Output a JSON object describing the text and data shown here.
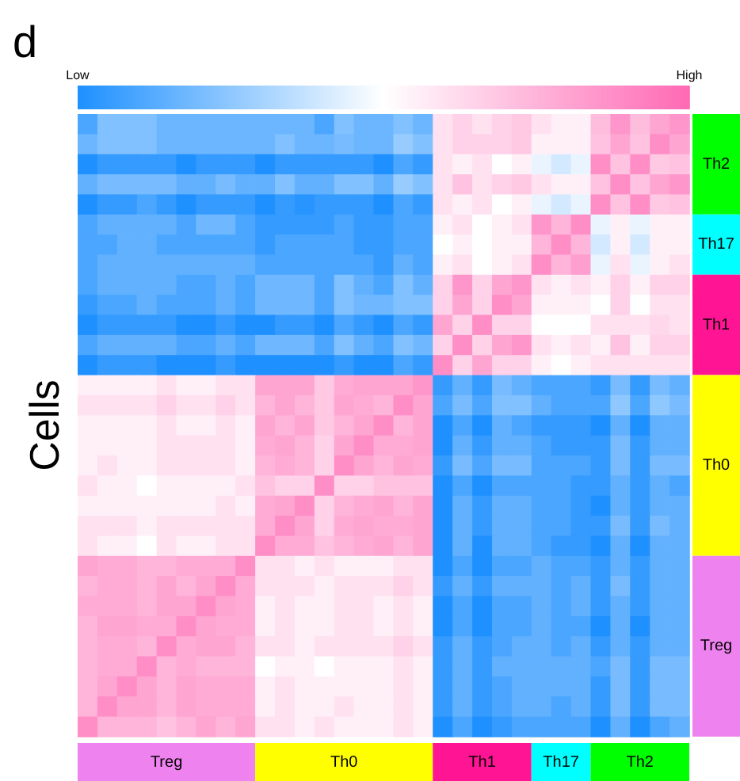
{
  "chart_data": {
    "type": "heatmap",
    "title": "d",
    "ylabel": "Cells",
    "categories": [
      null,
      null,
      null,
      null,
      "Treg",
      null,
      null,
      null,
      null,
      null,
      null,
      null,
      null,
      "Th0",
      null,
      null,
      null,
      null,
      null,
      null,
      "Th1",
      null,
      null,
      null,
      "Th17",
      null,
      null,
      null,
      "Th2",
      null,
      null
    ],
    "colors": [
      "#ee82ee",
      "#ee82ee",
      "#ee82ee",
      "#ee82ee",
      "#ee82ee",
      "#ee82ee",
      "#ee82ee",
      "#ee82ee",
      "#ee82ee",
      "#ffff00",
      "#ffff00",
      "#ffff00",
      "#ffff00",
      "#ffff00",
      "#ffff00",
      "#ffff00",
      "#ffff00",
      "#ffff00",
      "#ff1493",
      "#ff1493",
      "#ff1493",
      "#ff1493",
      "#ff1493",
      "#00ffff",
      "#00ffff",
      "#00ffff",
      "#00ff00",
      "#00ff00",
      "#00ff00",
      "#00ff00",
      "#00ff00"
    ],
    "y_categories": [
      null,
      null,
      null,
      null,
      null,
      null,
      null,
      null,
      null,
      null,
      null,
      null,
      null,
      null,
      null,
      null,
      null,
      null,
      null,
      null,
      null,
      null,
      null,
      null,
      null,
      null,
      null,
      null,
      null,
      null,
      null
    ],
    "y2_categories": [
      null,
      null,
      "Th2",
      null,
      null,
      null,
      "Th17",
      null,
      null,
      null,
      "Th1",
      null,
      null,
      null,
      null,
      null,
      null,
      "Th0",
      null,
      null,
      null,
      null,
      null,
      null,
      null,
      null,
      "Treg",
      null,
      null,
      null,
      null
    ],
    "clim": [
      0,
      1
    ],
    "cticks": [
      {
        "value": 0,
        "label": "Low"
      },
      {
        "value": 1,
        "label": "High"
      }
    ],
    "cells": [
      [
        0.1,
        0.22,
        0.22,
        0.22,
        0.17,
        0.17,
        0.17,
        0.17,
        0.17,
        0.17,
        0.17,
        0.17,
        0.1,
        0.22,
        0.17,
        0.17,
        0.22,
        0.17,
        0.6,
        0.65,
        0.6,
        0.65,
        0.68,
        0.6,
        0.55,
        0.55,
        0.72,
        0.85,
        0.72,
        0.8,
        0.85
      ],
      [
        0.17,
        0.22,
        0.22,
        0.22,
        0.17,
        0.17,
        0.17,
        0.17,
        0.17,
        0.17,
        0.22,
        0.17,
        0.17,
        0.2,
        0.17,
        0.17,
        0.27,
        0.22,
        0.6,
        0.65,
        0.65,
        0.65,
        0.68,
        0.55,
        0.55,
        0.55,
        0.7,
        0.8,
        0.7,
        0.88,
        0.8
      ],
      [
        0,
        0.05,
        0.05,
        0.05,
        0.05,
        0,
        0.05,
        0.05,
        0.05,
        0,
        0.05,
        0.05,
        0.05,
        0.05,
        0.05,
        0,
        0.1,
        0.05,
        0.6,
        0.55,
        0.6,
        0.5,
        0.55,
        0.45,
        0.4,
        0.45,
        0.88,
        0.7,
        0.88,
        0.68,
        0.7
      ],
      [
        0.15,
        0.2,
        0.2,
        0.2,
        0.2,
        0.15,
        0.15,
        0.2,
        0.15,
        0.15,
        0.22,
        0.15,
        0.15,
        0.22,
        0.22,
        0.15,
        0.27,
        0.22,
        0.6,
        0.7,
        0.6,
        0.65,
        0.68,
        0.6,
        0.55,
        0.55,
        0.7,
        0.88,
        0.7,
        0.8,
        0.85
      ],
      [
        0,
        0.05,
        0.05,
        0.1,
        0.05,
        0,
        0.05,
        0.05,
        0.05,
        0,
        0.05,
        0.02,
        0.05,
        0.05,
        0.05,
        0,
        0.1,
        0.05,
        0.6,
        0.55,
        0.6,
        0.5,
        0.55,
        0.45,
        0.4,
        0.45,
        0.88,
        0.7,
        0.88,
        0.68,
        0.7
      ],
      [
        0.1,
        0.15,
        0.15,
        0.15,
        0.15,
        0.1,
        0.18,
        0.18,
        0.1,
        0.05,
        0.05,
        0.05,
        0.05,
        0.1,
        0.05,
        0.05,
        0.1,
        0.1,
        0.55,
        0.6,
        0.5,
        0.55,
        0.6,
        0.85,
        0.75,
        0.88,
        0.45,
        0.55,
        0.45,
        0.55,
        0.55
      ],
      [
        0.1,
        0.1,
        0.15,
        0.15,
        0.1,
        0.1,
        0.1,
        0.1,
        0.1,
        0.05,
        0.1,
        0.1,
        0.1,
        0.1,
        0.05,
        0.05,
        0.1,
        0.1,
        0.5,
        0.55,
        0.5,
        0.55,
        0.55,
        0.75,
        0.88,
        0.75,
        0.4,
        0.55,
        0.4,
        0.55,
        0.55
      ],
      [
        0.1,
        0.15,
        0.15,
        0.15,
        0.15,
        0.15,
        0.15,
        0.15,
        0.15,
        0.1,
        0.1,
        0.1,
        0.1,
        0.1,
        0.1,
        0.05,
        0.15,
        0.1,
        0.55,
        0.6,
        0.5,
        0.55,
        0.6,
        0.88,
        0.75,
        0.82,
        0.45,
        0.6,
        0.45,
        0.55,
        0.6
      ],
      [
        0.1,
        0.15,
        0.15,
        0.15,
        0.15,
        0.1,
        0.1,
        0.15,
        0.1,
        0.18,
        0.18,
        0.18,
        0.1,
        0.22,
        0.15,
        0.1,
        0.22,
        0.15,
        0.65,
        0.85,
        0.65,
        0.8,
        0.85,
        0.6,
        0.55,
        0.6,
        0.55,
        0.65,
        0.55,
        0.65,
        0.65
      ],
      [
        0.05,
        0.1,
        0.1,
        0.15,
        0.1,
        0.1,
        0.1,
        0.15,
        0.1,
        0.18,
        0.18,
        0.18,
        0.1,
        0.22,
        0.18,
        0.18,
        0.22,
        0.22,
        0.65,
        0.8,
        0.65,
        0.88,
        0.8,
        0.55,
        0.55,
        0.55,
        0.5,
        0.65,
        0.5,
        0.6,
        0.6
      ],
      [
        0,
        0.05,
        0.05,
        0.05,
        0.05,
        0,
        0,
        0.05,
        0,
        0,
        0.05,
        0.05,
        0,
        0.1,
        0.05,
        0,
        0.1,
        0.05,
        0.8,
        0.65,
        0.88,
        0.65,
        0.65,
        0.5,
        0.5,
        0.5,
        0.6,
        0.6,
        0.6,
        0.63,
        0.6
      ],
      [
        0.1,
        0.15,
        0.15,
        0.15,
        0.15,
        0.1,
        0.1,
        0.15,
        0.1,
        0.18,
        0.18,
        0.18,
        0.1,
        0.22,
        0.15,
        0.1,
        0.22,
        0.18,
        0.65,
        0.88,
        0.65,
        0.8,
        0.85,
        0.6,
        0.55,
        0.6,
        0.55,
        0.7,
        0.55,
        0.65,
        0.65
      ],
      [
        0,
        0.05,
        0.05,
        0.05,
        0,
        0,
        0,
        0.05,
        0,
        0,
        0,
        0,
        0,
        0.05,
        0,
        0,
        0.1,
        0.05,
        0.88,
        0.65,
        0.8,
        0.65,
        0.65,
        0.55,
        0.5,
        0.55,
        0.6,
        0.6,
        0.6,
        0.6,
        0.6
      ],
      [
        0.55,
        0.55,
        0.55,
        0.55,
        0.6,
        0.55,
        0.55,
        0.6,
        0.6,
        0.8,
        0.8,
        0.8,
        0.68,
        0.78,
        0.8,
        0.8,
        0.8,
        0.85,
        0.05,
        0.15,
        0.05,
        0.2,
        0.15,
        0.1,
        0.1,
        0.1,
        0.05,
        0.2,
        0.05,
        0.2,
        0.15
      ],
      [
        0.6,
        0.6,
        0.6,
        0.6,
        0.65,
        0.6,
        0.6,
        0.65,
        0.6,
        0.75,
        0.8,
        0.75,
        0.68,
        0.8,
        0.78,
        0.75,
        0.88,
        0.8,
        0.1,
        0.2,
        0.1,
        0.22,
        0.22,
        0.15,
        0.1,
        0.1,
        0.1,
        0.25,
        0.1,
        0.25,
        0.2
      ],
      [
        0.55,
        0.55,
        0.55,
        0.55,
        0.6,
        0.55,
        0.55,
        0.6,
        0.55,
        0.8,
        0.75,
        0.8,
        0.68,
        0.75,
        0.8,
        0.88,
        0.75,
        0.8,
        0,
        0.1,
        0,
        0.15,
        0.1,
        0.05,
        0.05,
        0.05,
        0,
        0.15,
        0,
        0.15,
        0.15
      ],
      [
        0.55,
        0.55,
        0.55,
        0.55,
        0.6,
        0.6,
        0.6,
        0.6,
        0.55,
        0.78,
        0.8,
        0.75,
        0.65,
        0.8,
        0.88,
        0.78,
        0.78,
        0.8,
        0,
        0.15,
        0.05,
        0.15,
        0.15,
        0.1,
        0.05,
        0.05,
        0.05,
        0.2,
        0.05,
        0.15,
        0.15
      ],
      [
        0.55,
        0.6,
        0.55,
        0.55,
        0.6,
        0.6,
        0.6,
        0.6,
        0.55,
        0.75,
        0.78,
        0.75,
        0.65,
        0.88,
        0.8,
        0.75,
        0.8,
        0.78,
        0.05,
        0.2,
        0.1,
        0.2,
        0.2,
        0.1,
        0.1,
        0.1,
        0.05,
        0.2,
        0.05,
        0.2,
        0.2
      ],
      [
        0.6,
        0.55,
        0.55,
        0.5,
        0.55,
        0.55,
        0.55,
        0.55,
        0.6,
        0.7,
        0.65,
        0.65,
        0.88,
        0.65,
        0.65,
        0.7,
        0.7,
        0.7,
        0,
        0.1,
        0,
        0.1,
        0.1,
        0.1,
        0.1,
        0.05,
        0.05,
        0.15,
        0.05,
        0.15,
        0.1
      ],
      [
        0.55,
        0.55,
        0.55,
        0.55,
        0.55,
        0.55,
        0.55,
        0.6,
        0.55,
        0.78,
        0.8,
        0.88,
        0.65,
        0.75,
        0.78,
        0.8,
        0.75,
        0.8,
        0,
        0.15,
        0.05,
        0.15,
        0.15,
        0.1,
        0.1,
        0.05,
        0,
        0.15,
        0.05,
        0.15,
        0.15
      ],
      [
        0.6,
        0.6,
        0.6,
        0.55,
        0.6,
        0.6,
        0.6,
        0.6,
        0.6,
        0.78,
        0.88,
        0.8,
        0.65,
        0.78,
        0.8,
        0.78,
        0.78,
        0.8,
        0,
        0.15,
        0.05,
        0.15,
        0.15,
        0.1,
        0.1,
        0.05,
        0.05,
        0.2,
        0.05,
        0.2,
        0.15
      ],
      [
        0.6,
        0.55,
        0.55,
        0.5,
        0.6,
        0.55,
        0.55,
        0.6,
        0.6,
        0.88,
        0.78,
        0.78,
        0.7,
        0.75,
        0.78,
        0.8,
        0.75,
        0.8,
        0,
        0.15,
        0,
        0.15,
        0.15,
        0.1,
        0.05,
        0.05,
        0,
        0.15,
        0,
        0.15,
        0.15
      ],
      [
        0.8,
        0.78,
        0.78,
        0.75,
        0.75,
        0.78,
        0.78,
        0.78,
        0.88,
        0.6,
        0.6,
        0.55,
        0.6,
        0.55,
        0.55,
        0.55,
        0.6,
        0.6,
        0,
        0.1,
        0,
        0.1,
        0.1,
        0.15,
        0.1,
        0.1,
        0.05,
        0.15,
        0.05,
        0.15,
        0.15
      ],
      [
        0.75,
        0.78,
        0.78,
        0.75,
        0.8,
        0.75,
        0.8,
        0.88,
        0.78,
        0.6,
        0.6,
        0.6,
        0.55,
        0.6,
        0.6,
        0.6,
        0.65,
        0.6,
        0.05,
        0.15,
        0.05,
        0.15,
        0.15,
        0.15,
        0.1,
        0.15,
        0.05,
        0.2,
        0.05,
        0.15,
        0.15
      ],
      [
        0.78,
        0.78,
        0.78,
        0.75,
        0.8,
        0.8,
        0.88,
        0.8,
        0.78,
        0.55,
        0.6,
        0.55,
        0.55,
        0.6,
        0.6,
        0.55,
        0.6,
        0.55,
        0,
        0.1,
        0,
        0.1,
        0.1,
        0.15,
        0.1,
        0.15,
        0.05,
        0.15,
        0.05,
        0.15,
        0.15
      ],
      [
        0.75,
        0.8,
        0.8,
        0.78,
        0.78,
        0.88,
        0.8,
        0.78,
        0.78,
        0.55,
        0.6,
        0.55,
        0.55,
        0.6,
        0.6,
        0.55,
        0.6,
        0.55,
        0,
        0.1,
        0,
        0.1,
        0.1,
        0.15,
        0.1,
        0.1,
        0,
        0.15,
        0,
        0.15,
        0.15
      ],
      [
        0.75,
        0.78,
        0.78,
        0.75,
        0.88,
        0.78,
        0.8,
        0.8,
        0.75,
        0.6,
        0.6,
        0.55,
        0.6,
        0.6,
        0.6,
        0.6,
        0.65,
        0.6,
        0.05,
        0.15,
        0.05,
        0.1,
        0.15,
        0.15,
        0.1,
        0.15,
        0.05,
        0.15,
        0.05,
        0.15,
        0.15
      ],
      [
        0.75,
        0.78,
        0.78,
        0.88,
        0.75,
        0.78,
        0.75,
        0.75,
        0.75,
        0.5,
        0.55,
        0.55,
        0.5,
        0.55,
        0.55,
        0.55,
        0.6,
        0.55,
        0.05,
        0.15,
        0.05,
        0.15,
        0.15,
        0.15,
        0.15,
        0.15,
        0.1,
        0.2,
        0.05,
        0.2,
        0.2
      ],
      [
        0.75,
        0.8,
        0.88,
        0.8,
        0.75,
        0.8,
        0.78,
        0.78,
        0.78,
        0.55,
        0.6,
        0.55,
        0.55,
        0.55,
        0.55,
        0.55,
        0.6,
        0.55,
        0.05,
        0.15,
        0.05,
        0.1,
        0.15,
        0.15,
        0.15,
        0.15,
        0.05,
        0.2,
        0.05,
        0.2,
        0.2
      ],
      [
        0.75,
        0.88,
        0.8,
        0.8,
        0.75,
        0.8,
        0.78,
        0.78,
        0.78,
        0.55,
        0.6,
        0.55,
        0.55,
        0.6,
        0.55,
        0.55,
        0.6,
        0.55,
        0.05,
        0.15,
        0.05,
        0.1,
        0.15,
        0.15,
        0.1,
        0.15,
        0.05,
        0.2,
        0.05,
        0.2,
        0.2
      ],
      [
        0.88,
        0.75,
        0.75,
        0.75,
        0.7,
        0.75,
        0.8,
        0.75,
        0.8,
        0.6,
        0.6,
        0.55,
        0.6,
        0.55,
        0.55,
        0.55,
        0.6,
        0.55,
        0,
        0.1,
        0,
        0.05,
        0.1,
        0.1,
        0.1,
        0.1,
        0,
        0.15,
        0,
        0.1,
        0.15
      ]
    ]
  }
}
